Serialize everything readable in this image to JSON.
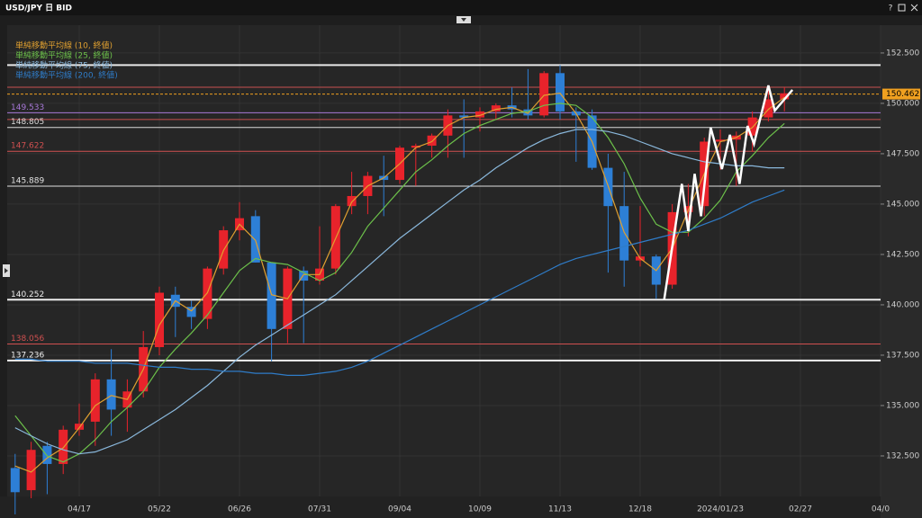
{
  "window": {
    "help": "?"
  },
  "chart_data": {
    "type": "candlestick",
    "title": "USD/JPY 日 BID",
    "categories": [
      null,
      null,
      null,
      null,
      "04/17",
      null,
      null,
      null,
      null,
      "05/22",
      null,
      null,
      null,
      null,
      "06/26",
      null,
      null,
      null,
      null,
      "07/31",
      null,
      null,
      null,
      null,
      "09/04",
      null,
      null,
      null,
      null,
      "10/09",
      null,
      null,
      null,
      null,
      "11/13",
      null,
      null,
      null,
      null,
      "12/18",
      null,
      null,
      null,
      null,
      "2024/01/23",
      null,
      null,
      null,
      null,
      "02/27",
      null,
      null,
      null,
      null,
      "04/0"
    ],
    "open": [
      131.9,
      130.8,
      133.0,
      132.1,
      133.8,
      134.2,
      136.3,
      134.9,
      135.7,
      137.9,
      140.5,
      139.9,
      139.3,
      141.8,
      143.7,
      144.4,
      142.1,
      138.8,
      141.7,
      141.2,
      141.8,
      144.9,
      145.4,
      146.4,
      146.2,
      147.8,
      147.9,
      148.4,
      149.4,
      149.3,
      149.6,
      149.9,
      149.7,
      149.4,
      151.5,
      149.6,
      149.4,
      146.8,
      144.9,
      142.2,
      142.4,
      141.0,
      144.6,
      144.9,
      148.1,
      148.2,
      148.4,
      149.3,
      150.2,
      null,
      null,
      null,
      null,
      null,
      null
    ],
    "high": [
      132.6,
      133.2,
      133.2,
      134.0,
      135.1,
      136.6,
      137.8,
      136.3,
      138.7,
      140.9,
      140.9,
      140.2,
      141.9,
      143.9,
      145.1,
      144.7,
      142.1,
      141.9,
      141.9,
      143.9,
      145.0,
      146.6,
      146.6,
      147.4,
      147.9,
      148.0,
      148.5,
      149.7,
      150.2,
      149.8,
      150.0,
      150.8,
      151.7,
      151.6,
      151.9,
      149.8,
      149.7,
      147.5,
      146.6,
      144.9,
      142.5,
      145.0,
      146.0,
      148.3,
      148.7,
      148.6,
      149.6,
      150.9,
      150.8,
      null,
      null,
      null,
      null,
      null,
      null
    ],
    "low": [
      129.6,
      130.4,
      130.6,
      131.6,
      133.5,
      133.0,
      133.5,
      133.7,
      135.4,
      137.5,
      138.4,
      138.8,
      138.8,
      141.5,
      143.2,
      142.1,
      137.2,
      138.1,
      138.1,
      141.0,
      141.5,
      144.5,
      144.5,
      144.4,
      146.0,
      145.9,
      147.3,
      147.3,
      147.3,
      148.6,
      149.2,
      149.3,
      149.2,
      149.3,
      149.2,
      147.1,
      146.7,
      141.6,
      140.9,
      141.9,
      140.3,
      140.8,
      143.4,
      144.4,
      146.7,
      145.9,
      147.6,
      149.1,
      149.6,
      null,
      null,
      null,
      null,
      null,
      null
    ],
    "close": [
      130.7,
      132.8,
      132.1,
      133.8,
      134.1,
      136.3,
      134.8,
      135.7,
      137.9,
      140.6,
      139.9,
      139.4,
      141.8,
      143.7,
      144.3,
      142.1,
      138.8,
      141.8,
      141.2,
      141.8,
      144.9,
      145.4,
      146.4,
      146.2,
      147.8,
      147.9,
      148.4,
      149.4,
      149.3,
      149.6,
      149.9,
      149.7,
      149.4,
      151.5,
      149.6,
      149.4,
      146.8,
      144.9,
      142.2,
      142.4,
      141.0,
      144.6,
      144.9,
      148.1,
      148.2,
      148.4,
      149.3,
      150.2,
      150.5,
      null,
      null,
      null,
      null,
      null,
      null
    ],
    "up_color": "#e8232b",
    "down_color": "#2d7fd6",
    "series": [
      {
        "name": "単純移動平均線 (10, 終値)",
        "color": "#e0a030",
        "values": [
          132.0,
          131.7,
          132.4,
          132.9,
          133.9,
          135.0,
          135.5,
          135.3,
          136.8,
          139.0,
          140.2,
          139.7,
          140.6,
          142.7,
          144.0,
          143.2,
          140.5,
          140.3,
          141.5,
          141.5,
          143.3,
          145.1,
          145.9,
          146.3,
          147.0,
          147.8,
          148.1,
          148.9,
          149.3,
          149.4,
          149.7,
          149.8,
          149.5,
          150.4,
          150.5,
          149.5,
          148.1,
          145.9,
          143.6,
          142.3,
          141.7,
          142.8,
          144.7,
          146.5,
          148.1,
          148.3,
          148.8,
          149.7,
          150.3,
          null,
          null,
          null,
          null,
          null,
          null
        ]
      },
      {
        "name": "単純移動平均線 (25, 終値)",
        "color": "#6cc04a",
        "values": [
          134.5,
          133.5,
          132.5,
          132.2,
          132.6,
          133.3,
          134.2,
          134.9,
          135.7,
          136.9,
          137.8,
          138.6,
          139.5,
          140.6,
          141.7,
          142.3,
          142.1,
          142.0,
          141.6,
          141.2,
          141.6,
          142.6,
          143.9,
          144.8,
          145.7,
          146.6,
          147.2,
          147.9,
          148.5,
          148.9,
          149.2,
          149.5,
          149.6,
          149.9,
          150.0,
          149.9,
          149.3,
          148.3,
          147.0,
          145.3,
          144.0,
          143.6,
          143.6,
          144.3,
          145.2,
          146.6,
          147.4,
          148.3,
          149.0,
          null,
          null,
          null,
          null,
          null,
          null
        ]
      },
      {
        "name": "単純移動平均線 (75, 終値)",
        "color": "#8ab8dc",
        "values": [
          133.9,
          133.5,
          133.1,
          132.8,
          132.6,
          132.7,
          133.0,
          133.3,
          133.8,
          134.3,
          134.8,
          135.4,
          136.0,
          136.7,
          137.4,
          138.0,
          138.5,
          139.0,
          139.5,
          140.0,
          140.5,
          141.2,
          141.9,
          142.6,
          143.3,
          143.9,
          144.5,
          145.1,
          145.7,
          146.2,
          146.8,
          147.3,
          147.8,
          148.2,
          148.5,
          148.7,
          148.7,
          148.6,
          148.4,
          148.1,
          147.8,
          147.5,
          147.3,
          147.1,
          147.0,
          146.9,
          146.9,
          146.8,
          146.8,
          null,
          null,
          null,
          null,
          null,
          null
        ]
      },
      {
        "name": "単純移動平均線 (200, 終値)",
        "color": "#2f7cc8",
        "values": [
          137.3,
          137.3,
          137.2,
          137.2,
          137.2,
          137.1,
          137.1,
          137.1,
          137.0,
          136.9,
          136.9,
          136.8,
          136.8,
          136.7,
          136.7,
          136.6,
          136.6,
          136.5,
          136.5,
          136.6,
          136.7,
          136.9,
          137.2,
          137.6,
          138.0,
          138.4,
          138.8,
          139.2,
          139.6,
          140.0,
          140.4,
          140.8,
          141.2,
          141.6,
          142.0,
          142.3,
          142.5,
          142.7,
          142.9,
          143.1,
          143.3,
          143.5,
          143.7,
          144.0,
          144.3,
          144.7,
          145.1,
          145.4,
          145.7,
          null,
          null,
          null,
          null,
          null,
          null
        ]
      }
    ],
    "levels": [
      {
        "value": 151.9,
        "color": "#e8e8e8",
        "width": 2
      },
      {
        "value": 150.8,
        "color": "#c85050",
        "width": 1
      },
      {
        "value": 149.533,
        "color": "#a878d8",
        "width": 1,
        "labeled": true
      },
      {
        "value": 149.2,
        "color": "#c85050",
        "width": 1
      },
      {
        "value": 148.805,
        "color": "#d8d8d8",
        "width": 1,
        "labeled": true
      },
      {
        "value": 147.622,
        "color": "#d05050",
        "width": 1,
        "labeled": true
      },
      {
        "value": 145.889,
        "color": "#e0e0e0",
        "width": 1,
        "labeled": true
      },
      {
        "value": 140.252,
        "color": "#ececec",
        "width": 2,
        "labeled": true
      },
      {
        "value": 138.056,
        "color": "#d05050",
        "width": 1,
        "labeled": true
      },
      {
        "value": 137.236,
        "color": "#f0f0f0",
        "width": 2,
        "labeled": true
      }
    ],
    "current_price": 150.462,
    "current_color": "#f0a020",
    "annotation": {
      "color": "#ffffff",
      "x": [
        40.5,
        41.6,
        42.0,
        42.4,
        42.8,
        43.4,
        44.1,
        44.6,
        45.2,
        45.7,
        46.1,
        47.0,
        47.4,
        48.5
      ],
      "y": [
        140.27,
        146.0,
        143.66,
        146.5,
        144.4,
        148.8,
        146.74,
        148.44,
        146.0,
        148.88,
        147.99,
        150.89,
        149.64,
        150.67
      ]
    },
    "ylim": [
      130.49,
      153.88
    ],
    "yticks": [
      {
        "value": 132.5,
        "label": "132.500"
      },
      {
        "value": 135,
        "label": "135.000"
      },
      {
        "value": 137.5,
        "label": "137.500"
      },
      {
        "value": 140,
        "label": "140.000"
      },
      {
        "value": 142.5,
        "label": "142.500"
      },
      {
        "value": 145,
        "label": "145.000"
      },
      {
        "value": 147.5,
        "label": "147.500"
      },
      {
        "value": 150,
        "label": "150.000"
      },
      {
        "value": 152.5,
        "label": "152.500"
      }
    ],
    "grid": true
  }
}
